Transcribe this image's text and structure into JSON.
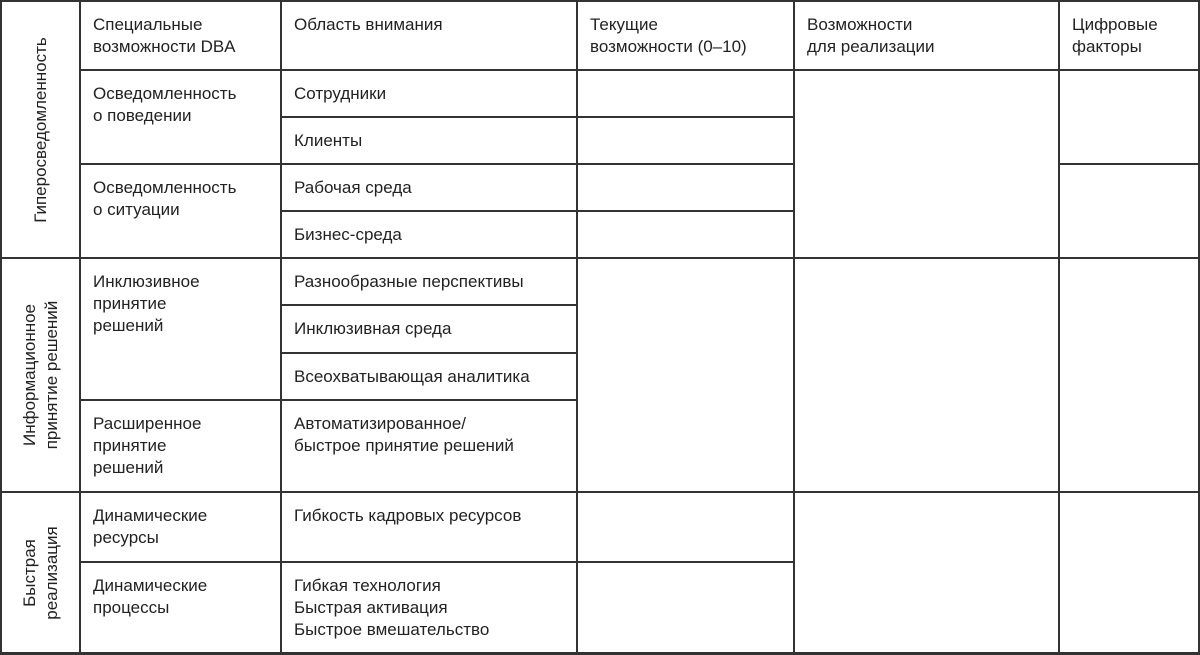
{
  "header": {
    "capabilities": "Специальные\nвозможности DBA",
    "focus_area": "Область внимания",
    "current": "Текущие\nвозможности (0–10)",
    "opportunities": "Возможности\nдля реализации",
    "digital": "Цифровые\nфакторы"
  },
  "groups": [
    {
      "label": "Гиперосведомленность",
      "capabilities": [
        {
          "name": "Осведомленность\nо поведении",
          "areas": [
            "Сотрудники",
            "Клиенты"
          ]
        },
        {
          "name": "Осведомленность\nо ситуации",
          "areas": [
            "Рабочая среда",
            "Бизнес-среда"
          ]
        }
      ]
    },
    {
      "label": "Информационное\nпринятие решений",
      "capabilities": [
        {
          "name": "Инклюзивное\nпринятие\nрешений",
          "areas": [
            "Разнообразные перспективы",
            "Инклюзивная среда",
            "Всеохватывающая аналитика"
          ]
        },
        {
          "name": "Расширенное\nпринятие\nрешений",
          "areas": [
            "Автоматизированное/\nбыстрое принятие решений"
          ]
        }
      ]
    },
    {
      "label": "Быстрая\nреализация",
      "capabilities": [
        {
          "name": "Динамические\nресурсы",
          "areas": [
            "Гибкость кадровых ресурсов"
          ]
        },
        {
          "name": "Динамические\nпроцессы",
          "areas": [
            "Гибкая технология\nБыстрая активация\nБыстрое вмешательство"
          ]
        }
      ]
    }
  ]
}
